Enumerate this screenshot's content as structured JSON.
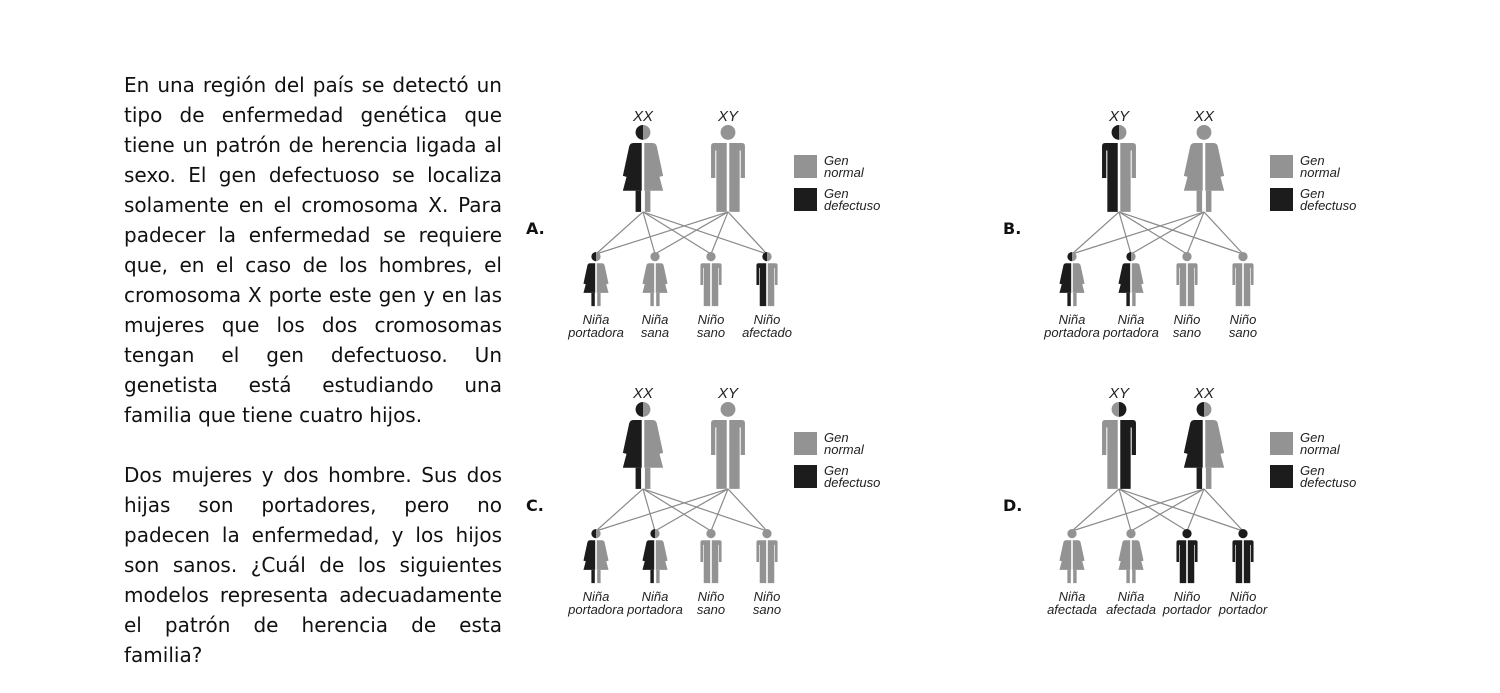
{
  "question": {
    "paragraph1": "En una región del país se detectó un tipo de enfermedad genética que tiene un patrón de herencia ligada al sexo. El gen defectuoso se localiza solamente en el cromosoma X. Para padecer la enfermedad se requiere que, en el caso de los hombres, el cromosoma X porte este gen y en las mujeres que los dos cromosomas tengan el gen defectuoso. Un genetista está estudiando una familia que tiene cuatro hijos.",
    "paragraph2": "Dos mujeres y dos hombre. Sus dos hijas son portadores, pero no padecen la enfermedad, y los hijos son sanos. ¿Cuál de los siguientes modelos representa adecuadamente el patrón de herencia de esta familia?"
  },
  "colors": {
    "normal": "#939393",
    "defective": "#1c1c1c",
    "line": "#8a8a8a"
  },
  "legend": {
    "normal": [
      "Gen",
      "normal"
    ],
    "defective": [
      "Gen",
      "defectuso"
    ]
  },
  "options": [
    {
      "letter": "A.",
      "parents": [
        {
          "chromosomes": "XX",
          "sex": "female",
          "left": "defective",
          "right": "normal"
        },
        {
          "chromosomes": "XY",
          "sex": "male",
          "left": "normal",
          "right": "normal"
        }
      ],
      "children": [
        {
          "sex": "female",
          "left": "defective",
          "right": "normal",
          "label": [
            "Niña",
            "portadora"
          ]
        },
        {
          "sex": "female",
          "left": "normal",
          "right": "normal",
          "label": [
            "Niña",
            "sana"
          ]
        },
        {
          "sex": "male",
          "left": "normal",
          "right": "normal",
          "label": [
            "Niño",
            "sano"
          ]
        },
        {
          "sex": "male",
          "left": "defective",
          "right": "normal",
          "label": [
            "Niño",
            "afectado"
          ]
        }
      ]
    },
    {
      "letter": "B.",
      "parents": [
        {
          "chromosomes": "XY",
          "sex": "male",
          "left": "defective",
          "right": "normal"
        },
        {
          "chromosomes": "XX",
          "sex": "female",
          "left": "normal",
          "right": "normal"
        }
      ],
      "children": [
        {
          "sex": "female",
          "left": "defective",
          "right": "normal",
          "label": [
            "Niña",
            "portadora"
          ]
        },
        {
          "sex": "female",
          "left": "defective",
          "right": "normal",
          "label": [
            "Niña",
            "portadora"
          ]
        },
        {
          "sex": "male",
          "left": "normal",
          "right": "normal",
          "label": [
            "Niño",
            "sano"
          ]
        },
        {
          "sex": "male",
          "left": "normal",
          "right": "normal",
          "label": [
            "Niño",
            "sano"
          ]
        }
      ]
    },
    {
      "letter": "C.",
      "parents": [
        {
          "chromosomes": "XX",
          "sex": "female",
          "left": "defective",
          "right": "normal"
        },
        {
          "chromosomes": "XY",
          "sex": "male",
          "left": "normal",
          "right": "normal"
        }
      ],
      "children": [
        {
          "sex": "female",
          "left": "defective",
          "right": "normal",
          "label": [
            "Niña",
            "portadora"
          ]
        },
        {
          "sex": "female",
          "left": "defective",
          "right": "normal",
          "label": [
            "Niña",
            "portadora"
          ]
        },
        {
          "sex": "male",
          "left": "normal",
          "right": "normal",
          "label": [
            "Niño",
            "sano"
          ]
        },
        {
          "sex": "male",
          "left": "normal",
          "right": "normal",
          "label": [
            "Niño",
            "sano"
          ]
        }
      ]
    },
    {
      "letter": "D.",
      "parents": [
        {
          "chromosomes": "XY",
          "sex": "male",
          "left": "normal",
          "right": "defective"
        },
        {
          "chromosomes": "XX",
          "sex": "female",
          "left": "defective",
          "right": "normal"
        }
      ],
      "children": [
        {
          "sex": "female",
          "left": "normal",
          "right": "normal",
          "label": [
            "Niña",
            "afectada"
          ]
        },
        {
          "sex": "female",
          "left": "normal",
          "right": "normal",
          "label": [
            "Niña",
            "afectada"
          ]
        },
        {
          "sex": "male",
          "left": "defective",
          "right": "defective",
          "label": [
            "Niño",
            "portador"
          ]
        },
        {
          "sex": "male",
          "left": "defective",
          "right": "defective",
          "label": [
            "Niño",
            "portador"
          ]
        }
      ]
    }
  ]
}
